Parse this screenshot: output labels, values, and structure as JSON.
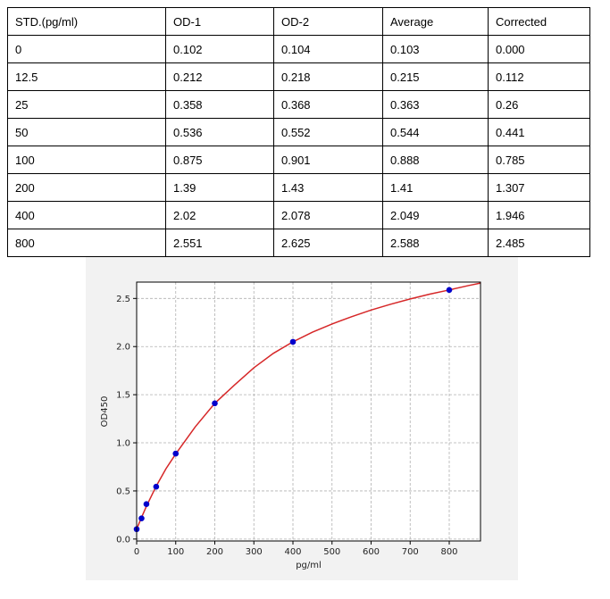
{
  "table": {
    "headers": [
      "STD.(pg/ml)",
      "OD-1",
      "OD-2",
      "Average",
      "Corrected"
    ],
    "rows": [
      [
        "0",
        "0.102",
        "0.104",
        "0.103",
        "0.000"
      ],
      [
        "12.5",
        "0.212",
        "0.218",
        "0.215",
        "0.112"
      ],
      [
        "25",
        "0.358",
        "0.368",
        "0.363",
        "0.26"
      ],
      [
        "50",
        "0.536",
        "0.552",
        "0.544",
        "0.441"
      ],
      [
        "100",
        "0.875",
        "0.901",
        "0.888",
        "0.785"
      ],
      [
        "200",
        "1.39",
        "1.43",
        "1.41",
        "1.307"
      ],
      [
        "400",
        "2.02",
        "2.078",
        "2.049",
        "1.946"
      ],
      [
        "800",
        "2.551",
        "2.625",
        "2.588",
        "2.485"
      ]
    ]
  },
  "chart_data": {
    "type": "scatter",
    "title": "",
    "xlabel": "pg/ml",
    "ylabel": "OD450",
    "xlim": [
      0,
      880
    ],
    "ylim": [
      -0.02,
      2.67
    ],
    "xticks": [
      0,
      100,
      200,
      300,
      400,
      500,
      600,
      700,
      800
    ],
    "yticks": [
      0.0,
      0.5,
      1.0,
      1.5,
      2.0,
      2.5
    ],
    "ytick_labels": [
      "0.0",
      "0.5",
      "1.0",
      "1.5",
      "2.0",
      "2.5"
    ],
    "grid": true,
    "points": {
      "x": [
        0,
        12.5,
        25,
        50,
        100,
        200,
        400,
        800
      ],
      "y": [
        0.103,
        0.215,
        0.363,
        0.544,
        0.888,
        1.41,
        2.049,
        2.588
      ],
      "color": "#0000cc"
    },
    "fit_curve": {
      "color": "#d62728",
      "x": [
        0,
        12.5,
        25,
        50,
        75,
        100,
        150,
        200,
        250,
        300,
        350,
        400,
        450,
        500,
        550,
        600,
        650,
        700,
        750,
        800,
        850,
        880
      ],
      "y": [
        0.103,
        0.225,
        0.34,
        0.55,
        0.73,
        0.885,
        1.165,
        1.41,
        1.6,
        1.78,
        1.93,
        2.049,
        2.15,
        2.235,
        2.31,
        2.38,
        2.44,
        2.495,
        2.545,
        2.588,
        2.635,
        2.66
      ]
    }
  }
}
